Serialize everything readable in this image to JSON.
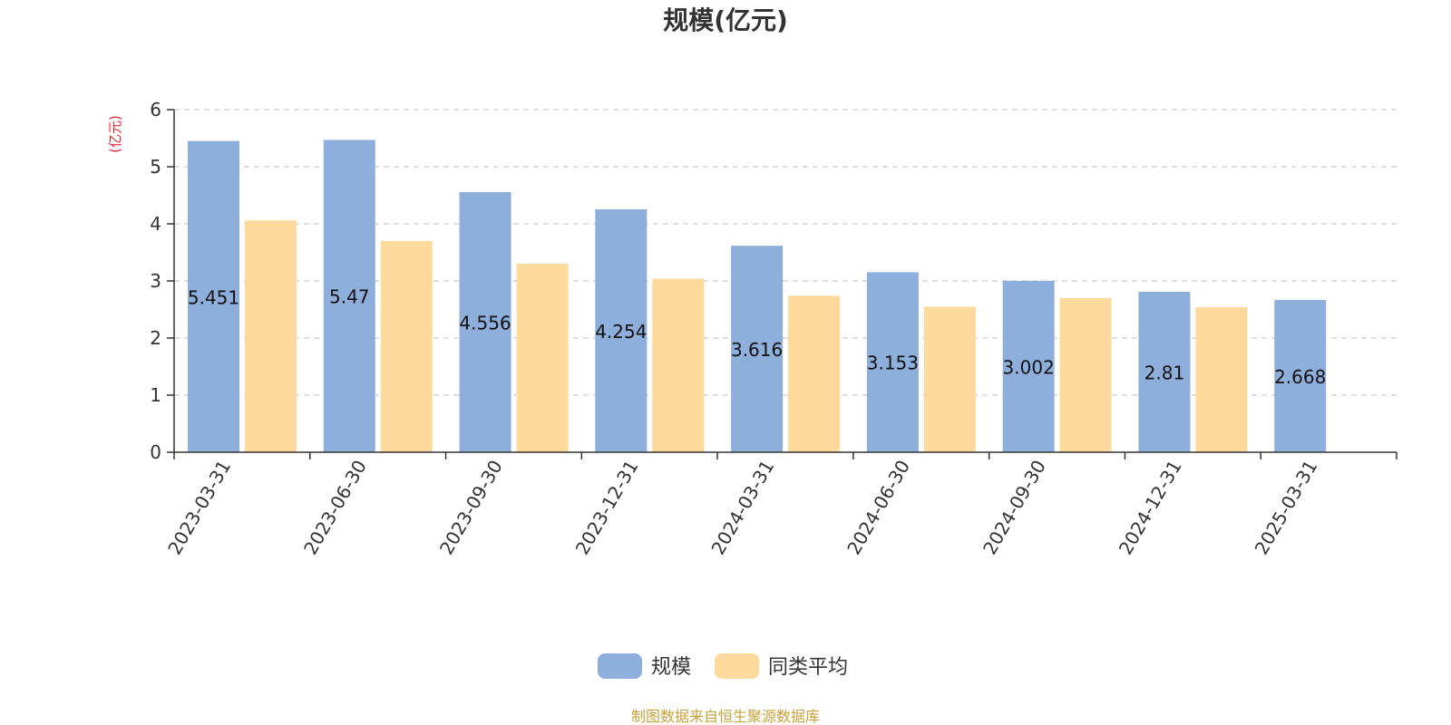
{
  "chart_data": {
    "type": "bar",
    "title": "规模(亿元)",
    "ylabel": "(亿元)",
    "ylim": [
      0,
      6
    ],
    "yticks": [
      0,
      1,
      2,
      3,
      4,
      5,
      6
    ],
    "grid": true,
    "legend_position": "bottom",
    "categories": [
      "2023-03-31",
      "2023-06-30",
      "2023-09-30",
      "2023-12-31",
      "2024-03-31",
      "2024-06-30",
      "2024-09-30",
      "2024-12-31",
      "2025-03-31"
    ],
    "series": [
      {
        "name": "规模",
        "color": "#8eaedb",
        "values": [
          5.451,
          5.47,
          4.556,
          4.254,
          3.616,
          3.153,
          3.002,
          2.81,
          2.668
        ],
        "labels": [
          "5.451",
          "5.47",
          "4.556",
          "4.254",
          "3.616",
          "3.153",
          "3.002",
          "2.81",
          "2.668"
        ]
      },
      {
        "name": "同类平均",
        "color": "#fdd99b",
        "values": [
          4.06,
          3.7,
          3.3,
          3.04,
          2.74,
          2.55,
          2.7,
          2.54,
          null
        ]
      }
    ],
    "colors": {
      "unit_label": "#e8272f",
      "source": "#c9a23a",
      "grid": "#cccccc",
      "axis": "#333333"
    },
    "source": "制图数据来自恒生聚源数据库"
  }
}
